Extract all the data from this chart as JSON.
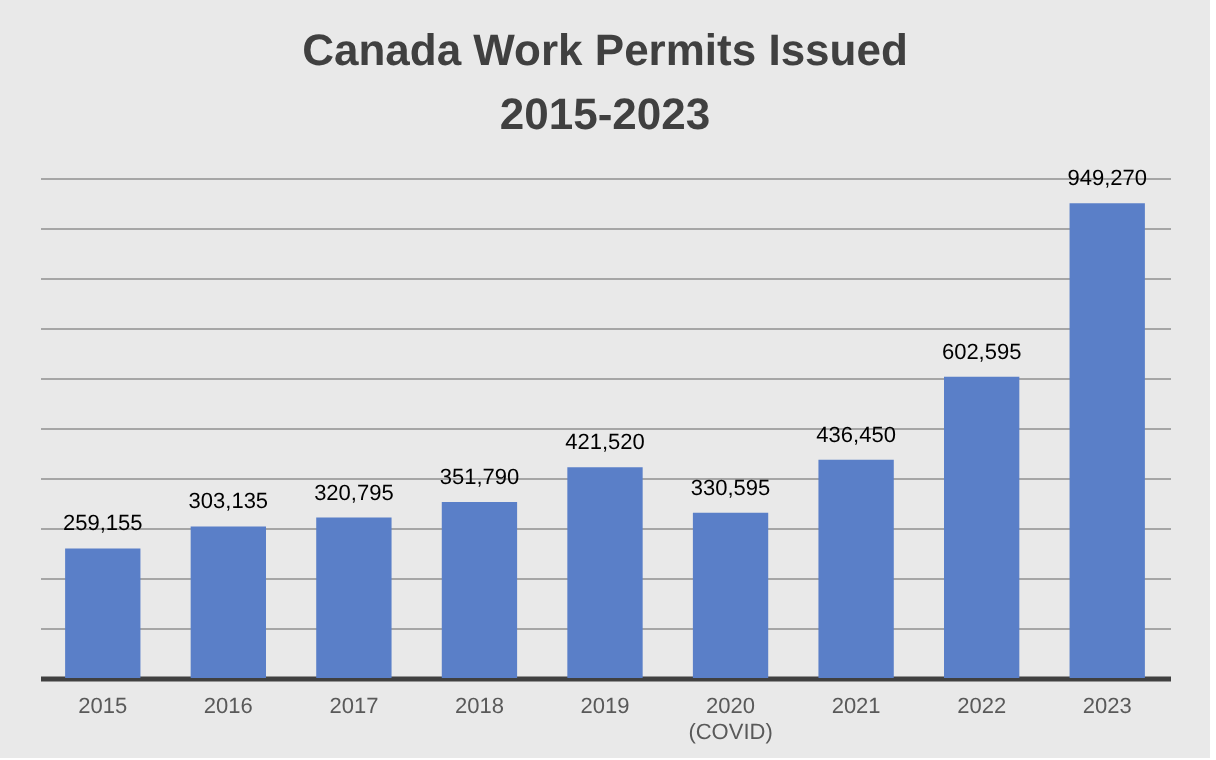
{
  "chart_data": {
    "type": "bar",
    "title": "Canada Work Permits Issued\n2015-2023",
    "categories": [
      "2015",
      "2016",
      "2017",
      "2018",
      "2019",
      "2020\n(COVID)",
      "2021",
      "2022",
      "2023"
    ],
    "values": [
      259155,
      303135,
      320795,
      351790,
      421520,
      330595,
      436450,
      602595,
      949270
    ],
    "value_labels": [
      "259,155",
      "303,135",
      "320,795",
      "351,790",
      "421,520",
      "330,595",
      "436,450",
      "602,595",
      "949,270"
    ],
    "color": "#5a7fc8",
    "tick_labels": "x",
    "grid": "y"
  }
}
